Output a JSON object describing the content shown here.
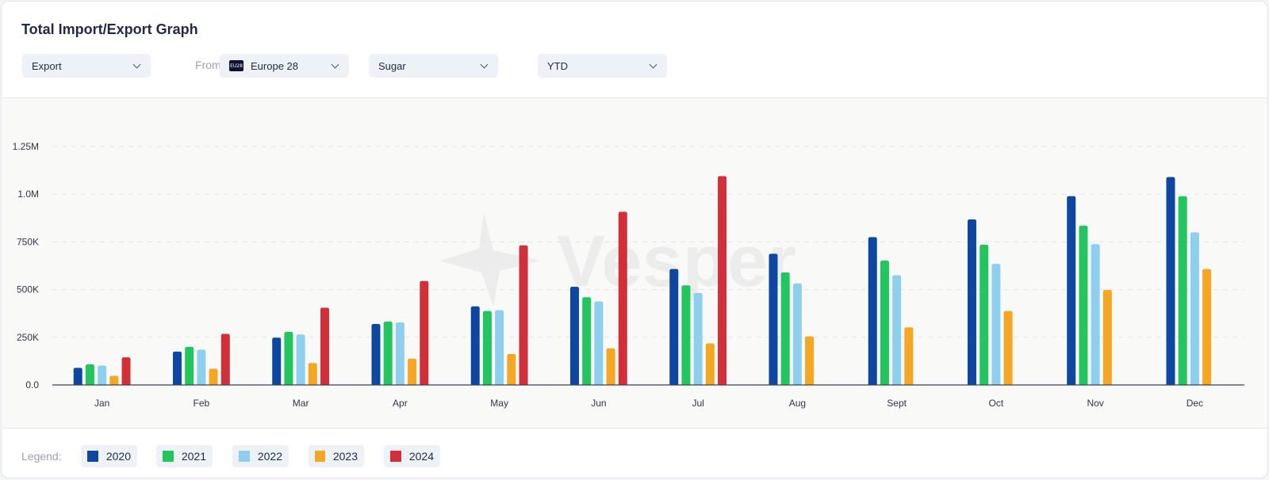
{
  "header": {
    "title": "Total Import/Export Graph"
  },
  "filters": {
    "direction": "Export",
    "from_label": "From:",
    "region_flag": "EU28",
    "region": "Europe 28",
    "product": "Sugar",
    "period": "YTD"
  },
  "watermark": "Vesper",
  "legend": {
    "label": "Legend:",
    "items": [
      {
        "name": "2020",
        "color": "#0d47a1"
      },
      {
        "name": "2021",
        "color": "#22c55e"
      },
      {
        "name": "2022",
        "color": "#8ecff0"
      },
      {
        "name": "2023",
        "color": "#f5a623"
      },
      {
        "name": "2024",
        "color": "#d12f3a"
      }
    ]
  },
  "chart_data": {
    "type": "bar",
    "categories": [
      "Jan",
      "Feb",
      "Mar",
      "Apr",
      "May",
      "Jun",
      "Jul",
      "Aug",
      "Sept",
      "Oct",
      "Nov",
      "Dec"
    ],
    "series": [
      {
        "name": "2020",
        "color": "#0d47a1",
        "values": [
          90000,
          175000,
          248000,
          320000,
          412000,
          515000,
          608000,
          688000,
          775000,
          868000,
          990000,
          1090000
        ]
      },
      {
        "name": "2021",
        "color": "#22c55e",
        "values": [
          108000,
          200000,
          278000,
          332000,
          388000,
          460000,
          522000,
          590000,
          652000,
          735000,
          835000,
          990000
        ]
      },
      {
        "name": "2022",
        "color": "#8ecff0",
        "values": [
          102000,
          185000,
          265000,
          328000,
          392000,
          438000,
          482000,
          532000,
          575000,
          635000,
          738000,
          800000
        ]
      },
      {
        "name": "2023",
        "color": "#f5a623",
        "values": [
          48000,
          85000,
          115000,
          138000,
          162000,
          192000,
          218000,
          255000,
          302000,
          388000,
          498000,
          608000
        ]
      },
      {
        "name": "2024",
        "color": "#d12f3a",
        "values": [
          145000,
          268000,
          405000,
          545000,
          732000,
          908000,
          1095000,
          null,
          null,
          null,
          null,
          null
        ]
      }
    ],
    "yticks": [
      0,
      250000,
      500000,
      750000,
      1000000,
      1250000
    ],
    "ytick_labels": [
      "0.0",
      "250K",
      "500K",
      "750K",
      "1.0M",
      "1.25M"
    ],
    "ylim": [
      0,
      1250000
    ],
    "grid": true,
    "title": "",
    "xlabel": "",
    "ylabel": ""
  }
}
